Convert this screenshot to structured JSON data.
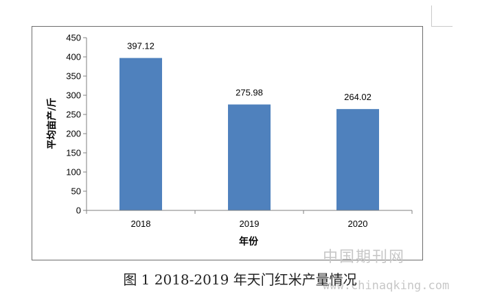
{
  "chart_data": {
    "type": "bar",
    "categories": [
      "2018",
      "2019",
      "2020"
    ],
    "values": [
      397.12,
      275.98,
      264.02
    ],
    "data_labels": [
      "397.12",
      "275.98",
      "264.02"
    ],
    "title": "",
    "xlabel": "年份",
    "ylabel": "平均亩产/斤",
    "ylim": [
      0,
      450
    ],
    "yticks": [
      "0",
      "50",
      "100",
      "150",
      "200",
      "250",
      "300",
      "350",
      "400",
      "450"
    ],
    "grid": false,
    "legend": "none",
    "bar_color": "#4f81bd"
  },
  "caption": "图 1   2018-2019 年天门红米产量情况",
  "watermark": {
    "text": "中国期刊网",
    "url": "www.chinaqking.com"
  }
}
